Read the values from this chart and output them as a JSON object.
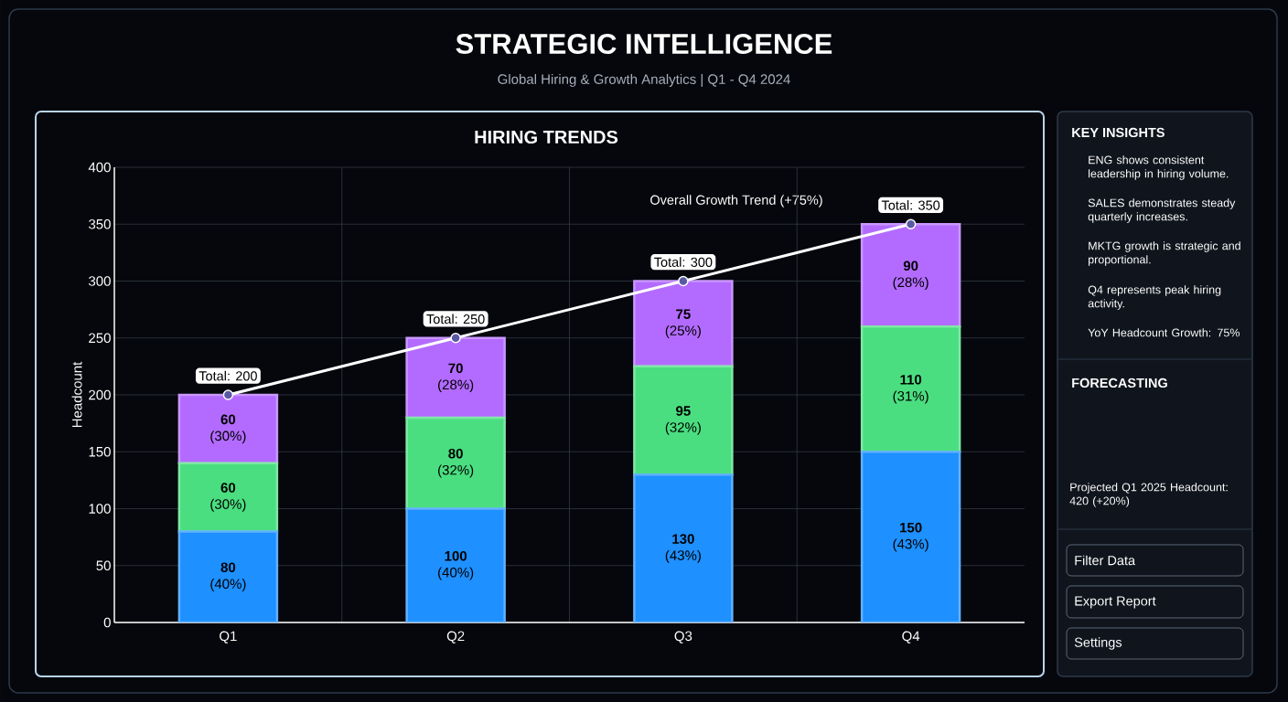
{
  "chart_data": {
    "type": "bar",
    "stacked": true,
    "grid": true,
    "title": "STRATEGIC INTELLIGENCE",
    "subtitle": "Global Hiring & Growth Analytics | Q1 - Q4 2024",
    "ylabel": "Headcount",
    "categories": [
      "Q1",
      "Q2",
      "Q3",
      "Q4"
    ],
    "ylim": [
      0,
      400
    ],
    "yticks": [
      0,
      50,
      100,
      150,
      200,
      250,
      300,
      350,
      400
    ],
    "series": [
      {
        "color": "#1e90ff",
        "values": [
          80,
          100,
          130,
          150
        ],
        "value_labels": [
          "**80** (40%)",
          "**100** (40%)",
          "**130** (43%)",
          "**150** (43%)"
        ]
      },
      {
        "color": "#4ade80",
        "values": [
          60,
          80,
          95,
          110
        ],
        "value_labels": [
          "**60** (30%)",
          "**80** (32%)",
          "**95** (32%)",
          "**110** (31%)"
        ]
      },
      {
        "color": "#b36bff",
        "values": [
          60,
          70,
          75,
          90
        ],
        "value_labels": [
          "**60** (30%)",
          "**70** (28%)",
          "**75** (25%)",
          "**90** (28%)"
        ]
      },
      {
        "type": "line",
        "color": "#ffffff",
        "marker": "circle",
        "line_style": "solid",
        "values": [
          200,
          250,
          300,
          350
        ]
      }
    ],
    "totals": [
      "Total: 200",
      "Total: 250",
      "Total: 300",
      "Total: 350"
    ],
    "annotations": [
      "HIRING TRENDS",
      "Overall Growth Trend (+75%)",
      "KEY INSIGHTS",
      "ENG shows consistent leadership in hiring volume.",
      "SALES demonstrates steady quarterly increases.",
      "MKTG growth is strategic and proportional.",
      "Q4 represents peak hiring activity.",
      "YoY Headcount Growth: 75%",
      "FORECASTING",
      "Projected Q1 2025 Headcount: 420 (+20%)",
      "Filter Data",
      "Export Report",
      "Settings"
    ]
  }
}
